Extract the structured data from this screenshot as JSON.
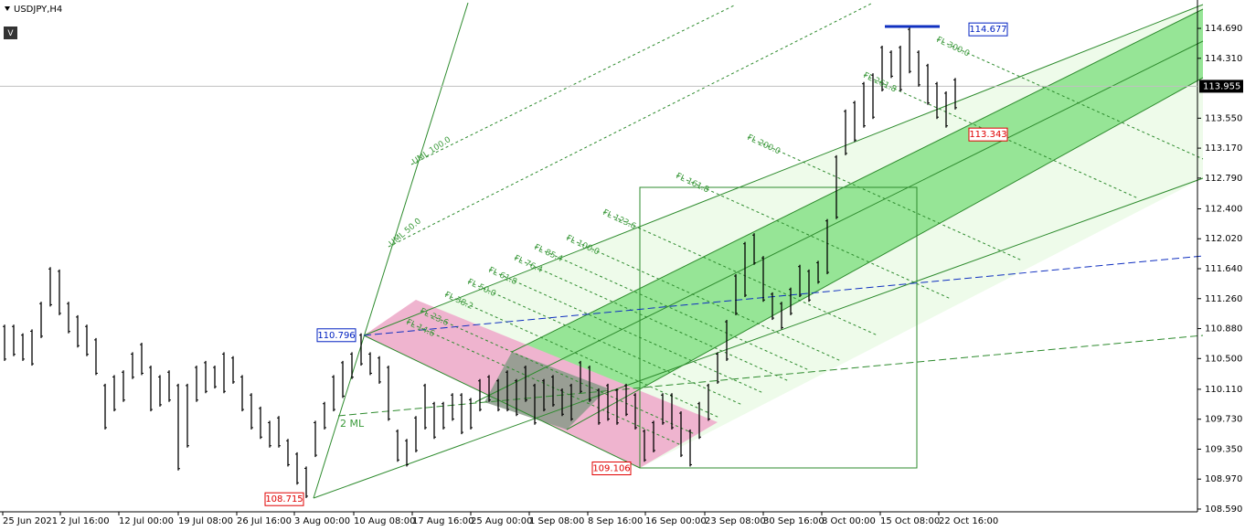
{
  "chart_data": {
    "type": "hl-bar",
    "title": "USDJPY,H4",
    "button": "V",
    "ylim": [
      108.555,
      115.05
    ],
    "xlim": [
      -0.5,
      130.5
    ],
    "yticks": [
      {
        "value": 114.69,
        "label": "114.690"
      },
      {
        "value": 114.31,
        "label": "114.310"
      },
      {
        "value": 113.55,
        "label": "113.550"
      },
      {
        "value": 113.17,
        "label": "113.170"
      },
      {
        "value": 112.79,
        "label": "112.790"
      },
      {
        "value": 112.4,
        "label": "112.400"
      },
      {
        "value": 112.02,
        "label": "112.020"
      },
      {
        "value": 111.64,
        "label": "111.640"
      },
      {
        "value": 111.26,
        "label": "111.260"
      },
      {
        "value": 110.88,
        "label": "110.880"
      },
      {
        "value": 110.5,
        "label": "110.500"
      },
      {
        "value": 110.11,
        "label": "110.110"
      },
      {
        "value": 109.73,
        "label": "109.730"
      },
      {
        "value": 109.35,
        "label": "109.350"
      },
      {
        "value": 108.97,
        "label": "108.970"
      },
      {
        "value": 108.59,
        "label": "108.590"
      }
    ],
    "xticks": [
      {
        "value": -0.2,
        "label": "25 Jun 2021"
      },
      {
        "value": 6.1,
        "label": "2 Jul 16:00"
      },
      {
        "value": 12.5,
        "label": "12 Jul 00:00"
      },
      {
        "value": 19,
        "label": "19 Jul 08:00"
      },
      {
        "value": 25.4,
        "label": "26 Jul 16:00"
      },
      {
        "value": 31.7,
        "label": "3 Aug 00:00"
      },
      {
        "value": 38.2,
        "label": "10 Aug 08:00"
      },
      {
        "value": 44.6,
        "label": "17 Aug 16:00"
      },
      {
        "value": 51,
        "label": "25 Aug 00:00"
      },
      {
        "value": 57.4,
        "label": "1 Sep 08:00"
      },
      {
        "value": 63.8,
        "label": "8 Sep 16:00"
      },
      {
        "value": 70.1,
        "label": "16 Sep 00:00"
      },
      {
        "value": 76.6,
        "label": "23 Sep 08:00"
      },
      {
        "value": 83,
        "label": "30 Sep 16:00"
      },
      {
        "value": 89.4,
        "label": "8 Oct 00:00"
      },
      {
        "value": 95.8,
        "label": "15 Oct 08:00"
      },
      {
        "value": 102.2,
        "label": "22 Oct 16:00"
      }
    ],
    "series": [
      {
        "color": "#000000",
        "high": [
          110.93,
          110.93,
          110.82,
          110.87,
          111.22,
          111.66,
          111.63,
          111.22,
          111.05,
          110.93,
          110.76,
          110.18,
          110.29,
          110.35,
          110.58,
          110.7,
          110.41,
          110.29,
          110.35,
          110.18,
          110.18,
          110.41,
          110.47,
          110.41,
          110.58,
          110.53,
          110.29,
          110.06,
          109.89,
          109.71,
          109.77,
          109.48,
          109.31,
          109.13,
          109.71,
          109.95,
          110.29,
          110.47,
          110.58,
          110.82,
          110.58,
          110.53,
          110.41,
          109.6,
          109.48,
          109.77,
          110.18,
          109.95,
          109.95,
          110.06,
          110.06,
          110.0,
          110.24,
          110.29,
          110.24,
          110.35,
          110.24,
          110.41,
          110.18,
          110.24,
          110.29,
          110.12,
          110.18,
          110.47,
          110.41,
          110.12,
          110.18,
          110.12,
          110.18,
          110.06,
          109.6,
          109.71,
          110.06,
          110.06,
          109.83,
          109.6,
          109.95,
          110.18,
          110.58,
          110.99,
          111.57,
          111.98,
          112.09,
          111.8,
          111.34,
          111.22,
          111.4,
          111.69,
          111.63,
          111.74,
          112.27,
          113.08,
          113.66,
          113.77,
          114.01,
          114.12,
          114.47,
          114.41,
          114.47,
          114.7,
          114.41,
          114.24,
          114.01,
          113.89,
          114.06
        ],
        "low": [
          110.47,
          110.53,
          110.47,
          110.41,
          110.76,
          111.16,
          111.05,
          110.82,
          110.64,
          110.53,
          110.29,
          109.6,
          109.83,
          109.95,
          110.24,
          110.29,
          109.83,
          109.89,
          109.95,
          109.08,
          109.37,
          109.95,
          110.06,
          110.12,
          110.06,
          110.18,
          109.83,
          109.6,
          109.48,
          109.37,
          109.37,
          109.13,
          108.9,
          108.73,
          109.25,
          109.6,
          109.83,
          110.0,
          110.24,
          110.41,
          110.29,
          110.18,
          109.71,
          109.19,
          109.13,
          109.31,
          109.6,
          109.48,
          109.6,
          109.71,
          109.54,
          109.6,
          109.83,
          109.95,
          109.83,
          109.83,
          109.77,
          109.95,
          109.66,
          109.83,
          109.89,
          109.77,
          109.71,
          110.06,
          109.95,
          109.66,
          109.71,
          109.66,
          109.77,
          109.6,
          109.19,
          109.31,
          109.66,
          109.6,
          109.25,
          109.13,
          109.48,
          109.71,
          110.18,
          110.47,
          111.05,
          111.28,
          111.69,
          111.22,
          110.99,
          110.87,
          111.05,
          111.28,
          111.22,
          111.45,
          111.57,
          112.27,
          113.08,
          113.25,
          113.43,
          113.54,
          113.89,
          114.06,
          113.89,
          114.12,
          113.95,
          113.72,
          113.54,
          113.43,
          113.66
        ]
      }
    ],
    "current_price": 113.955,
    "price_labels": [
      {
        "value": 114.677,
        "color": "#0020c0"
      },
      {
        "value": 113.343,
        "color": "#e00000"
      },
      {
        "value": 110.796,
        "color": "#0020c0"
      },
      {
        "value": 108.715,
        "color": "#e00000"
      },
      {
        "value": 109.106,
        "color": "#e00000"
      }
    ],
    "fib_labels": [
      "FL 14.6",
      "FL 23.6",
      "FL 38.2",
      "FL 50.0",
      "FL 61.8",
      "FL 76.4",
      "FL 85.4",
      "FL 100.0",
      "FL 123.6",
      "FL 161.8",
      "FL 200.0",
      "FL 261.8",
      "FL 300.0"
    ],
    "line_labels": [
      "UML 100.0",
      "UML 50.0",
      "2 ML"
    ]
  }
}
